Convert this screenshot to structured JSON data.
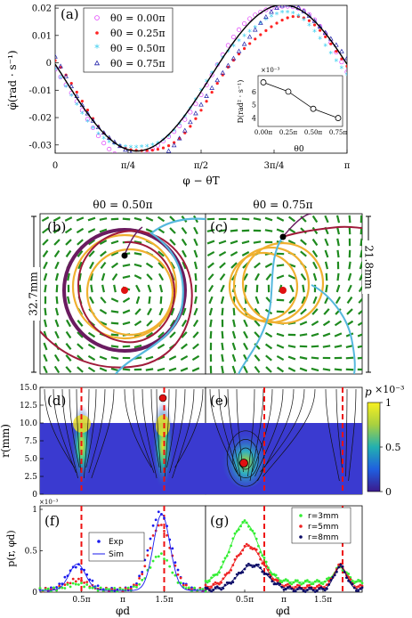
{
  "panel_labels": [
    "(a)",
    "(b)",
    "(c)",
    "(d)",
    "(e)",
    "(f)",
    "(g)"
  ],
  "titles": {
    "b": "θ0 = 0.50π",
    "c": "θ0 = 0.75π"
  },
  "scale_bars": {
    "b": "32.7mm",
    "c": "21.8mm"
  },
  "colors": {
    "theta0_00": "#e040fb",
    "theta0_25": "#ff2222",
    "theta0_50": "#33ccee",
    "theta0_75": "#2222aa",
    "sim": "#000000",
    "vector": "#1e8a1e",
    "traj_purple": "#6a1b60",
    "traj_orange": "#f0b030",
    "traj_cyan": "#55b8dd",
    "traj_red": "#a01a3a",
    "dashed": "#ee1111",
    "exp_blue": "#1a1aee",
    "r3": "#33ee33",
    "r5": "#ee2222",
    "r8": "#0a0a66"
  },
  "chart_data": [
    {
      "panel": "a",
      "type": "scatter",
      "xlabel": "φ − θT",
      "ylabel": "φ̇(rad · s⁻¹)",
      "xlim": [
        0,
        1
      ],
      "ylim": [
        -0.033,
        0.021
      ],
      "xticks": [
        0,
        0.25,
        0.5,
        0.75,
        1
      ],
      "xticklabels": [
        "0",
        "π/4",
        "π/2",
        "3π/4",
        "π"
      ],
      "yticks": [
        -0.03,
        -0.02,
        -0.01,
        0,
        0.01,
        0.02
      ],
      "yticklabels": [
        "-0.03",
        "-0.02",
        "-0.01",
        "0",
        "0.01",
        "0.02"
      ],
      "legend_position": "top-left",
      "series": [
        {
          "name": "θ0 = 0.00π",
          "marker": "open-circle",
          "amp": 0.0305,
          "offset": -0.0065,
          "phase": 0
        },
        {
          "name": "θ0 = 0.25π",
          "marker": "filled-dot",
          "amp": 0.0255,
          "offset": -0.0085,
          "phase": 0
        },
        {
          "name": "θ0 = 0.50π",
          "marker": "star",
          "amp": 0.027,
          "offset": -0.0075,
          "phase": 0
        },
        {
          "name": "θ0 = 0.75π",
          "marker": "open-triangle",
          "amp": 0.0285,
          "offset": -0.0075,
          "phase": 0
        }
      ],
      "sim_curve": {
        "amp": 0.0287,
        "offset": -0.0055
      },
      "inset": {
        "ylabel": "D(rad² · s⁻¹)",
        "xlabel": "θ0",
        "exponent": "×10⁻³",
        "x": [
          0,
          0.25,
          0.5,
          0.75
        ],
        "xticklabels": [
          "0.00π",
          "0.25π",
          "0.50π",
          "0.75π"
        ],
        "y": [
          6.7,
          6.0,
          4.7,
          4.0
        ],
        "ylim": [
          3.5,
          7
        ],
        "yticks": [
          4,
          5,
          6
        ]
      }
    },
    {
      "panel": "d",
      "type": "heatmap",
      "ylabel": "r(mm)",
      "ylim": [
        0,
        15
      ],
      "yticks": [
        0,
        2.5,
        5,
        7.5,
        10,
        12.5,
        15
      ],
      "yticklabels": [
        "0",
        "2.5",
        "5.0",
        "7.5",
        "10.0",
        "12.5",
        "15.0"
      ],
      "peaks_phi": [
        0.5,
        1.5
      ],
      "dashed_phi": [
        0.5,
        1.5
      ]
    },
    {
      "panel": "e",
      "type": "heatmap",
      "peaks_phi": [
        0.5
      ],
      "dashed_phi": [
        0.75,
        1.75
      ]
    },
    {
      "colorbar": true,
      "label": "p",
      "exponent": "×10⁻³",
      "ticks": [
        0,
        0.5,
        1
      ],
      "ticklabels": [
        "0",
        "0.5",
        "1"
      ]
    },
    {
      "panel": "f",
      "type": "line",
      "ylabel": "p(r, φd)",
      "xlabel": "φd",
      "exponent": "×10⁻³",
      "xlim": [
        0,
        2
      ],
      "ylim": [
        0,
        1
      ],
      "xticks": [
        0.5,
        1,
        1.5
      ],
      "xticklabels": [
        "0.5π",
        "π",
        "1.5π"
      ],
      "yticks": [
        0,
        0.5,
        1
      ],
      "yticklabels": [
        "0",
        "0.5",
        "1"
      ],
      "legend": [
        "Exp",
        "Sim"
      ],
      "legend_position": "top-left",
      "dashed_x": [
        0.5,
        1.5
      ],
      "series": [
        {
          "name": "Exp",
          "color_key": "exp_blue",
          "peaks": [
            0.29,
            0.93
          ]
        },
        {
          "name": "",
          "color_key": "r5",
          "peaks": [
            0.12,
            0.78
          ]
        },
        {
          "name": "",
          "color_key": "r3",
          "peaks": [
            0.07,
            0.42
          ]
        }
      ],
      "sim": {
        "name": "Sim",
        "peaks": [
          0.32,
          0.92
        ]
      }
    },
    {
      "panel": "g",
      "type": "line",
      "xlabel": "φd",
      "xlim": [
        0,
        2
      ],
      "ylim": [
        0,
        1
      ],
      "xticks": [
        0.5,
        1,
        1.5
      ],
      "xticklabels": [
        "0.5π",
        "π",
        "1.5π"
      ],
      "legend": [
        "r=3mm",
        "r=5mm",
        "r=8mm"
      ],
      "legend_position": "top-right",
      "dashed_x": [
        0.75,
        1.75
      ],
      "series": [
        {
          "name": "r=3mm",
          "color_key": "r3",
          "peak_x": 0.5,
          "peak": 0.72,
          "base": 0.12,
          "peak2": 0.18
        },
        {
          "name": "r=5mm",
          "color_key": "r5",
          "peak_x": 0.55,
          "peak": 0.5,
          "base": 0.06,
          "peak2": 0.26
        },
        {
          "name": "r=8mm",
          "color_key": "r8",
          "peak_x": 0.6,
          "peak": 0.3,
          "base": 0.03,
          "peak2": 0.28
        }
      ]
    }
  ]
}
